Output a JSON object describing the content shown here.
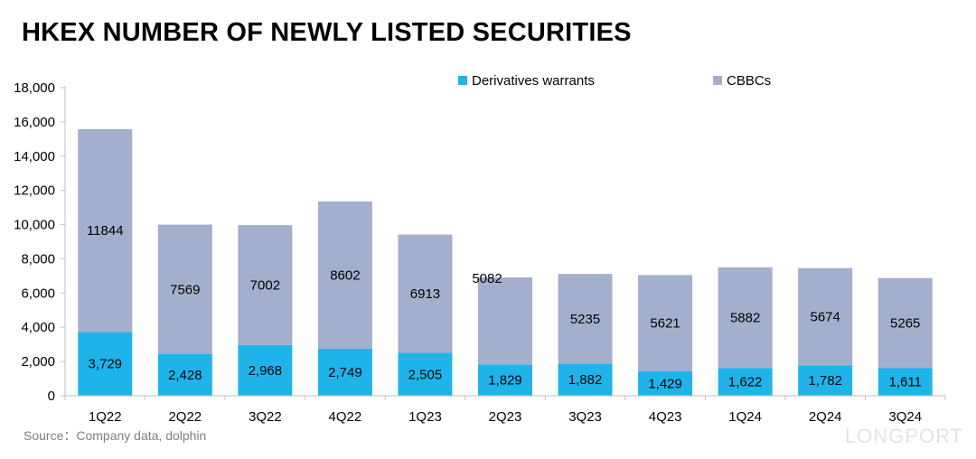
{
  "title": "HKEX NUMBER OF NEWLY LISTED SECURITIES",
  "source": "Source：Company data, dolphin",
  "watermark": "LONGPORT",
  "colors": {
    "warrants": "#1EB4EA",
    "cbbcs": "#A3AFCD",
    "axis": "#bfbfbf"
  },
  "chart_data": {
    "type": "bar",
    "stacked": true,
    "categories": [
      "1Q22",
      "2Q22",
      "3Q22",
      "4Q22",
      "1Q23",
      "2Q23",
      "3Q23",
      "4Q23",
      "1Q24",
      "2Q24",
      "3Q24"
    ],
    "series": [
      {
        "name": "Derivatives warrants",
        "values": [
          3729,
          2428,
          2968,
          2749,
          2505,
          1829,
          1882,
          1429,
          1622,
          1782,
          1611
        ],
        "labels": [
          "3,729",
          "2,428",
          "2,968",
          "2,749",
          "2,505",
          "1,829",
          "1,882",
          "1,429",
          "1,622",
          "1,782",
          "1,611"
        ]
      },
      {
        "name": "CBBCs",
        "values": [
          11844,
          7569,
          7002,
          8602,
          6913,
          5082,
          5235,
          5621,
          5882,
          5674,
          5265
        ],
        "labels": [
          "11844",
          "7569",
          "7002",
          "8602",
          "6913",
          "5082",
          "5235",
          "5621",
          "5882",
          "5674",
          "5265"
        ]
      }
    ],
    "ylim": [
      0,
      18000
    ],
    "yticks": [
      "0",
      "2,000",
      "4,000",
      "6,000",
      "8,000",
      "10,000",
      "12,000",
      "14,000",
      "16,000",
      "18,000"
    ],
    "legend": "top-right",
    "grid": false
  }
}
